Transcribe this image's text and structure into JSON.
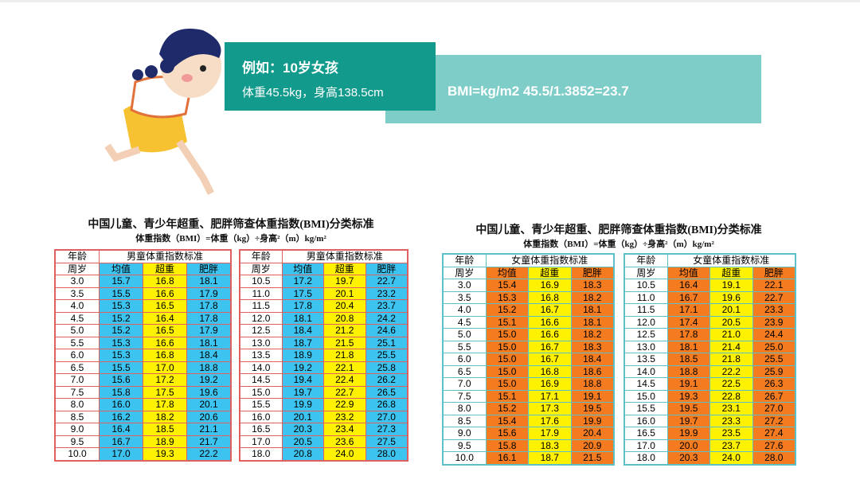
{
  "header": {
    "title": "例如：10岁女孩",
    "subtitle": "体重45.5kg，身高138.5cm",
    "formula": "BMI=kg/m2  45.5/1.3852=23.7"
  },
  "blocks": [
    {
      "title": "中国儿童、青少年超重、肥胖筛查体重指数(BMI)分类标准",
      "formula": "体重指数（BMI）=体重（kg）÷身高²（m）kg/m²",
      "tables": [
        {
          "header": [
            "年龄",
            "男童体重指数标准"
          ],
          "subheader": [
            "周岁",
            "均值",
            "超重",
            "肥胖"
          ],
          "rows": [
            [
              "3.0",
              "15.7",
              "16.8",
              "18.1"
            ],
            [
              "3.5",
              "15.5",
              "16.6",
              "17.9"
            ],
            [
              "4.0",
              "15.3",
              "16.5",
              "17.8"
            ],
            [
              "4.5",
              "15.2",
              "16.4",
              "17.8"
            ],
            [
              "5.0",
              "15.2",
              "16.5",
              "17.9"
            ],
            [
              "5.5",
              "15.3",
              "16.6",
              "18.1"
            ],
            [
              "6.0",
              "15.3",
              "16.8",
              "18.4"
            ],
            [
              "6.5",
              "15.5",
              "17.0",
              "18.8"
            ],
            [
              "7.0",
              "15.6",
              "17.2",
              "19.2"
            ],
            [
              "7.5",
              "15.8",
              "17.5",
              "19.6"
            ],
            [
              "8.0",
              "16.0",
              "17.8",
              "20.1"
            ],
            [
              "8.5",
              "16.2",
              "18.2",
              "20.6"
            ],
            [
              "9.0",
              "16.4",
              "18.5",
              "21.1"
            ],
            [
              "9.5",
              "16.7",
              "18.9",
              "21.7"
            ],
            [
              "10.0",
              "17.0",
              "19.3",
              "22.2"
            ]
          ]
        },
        {
          "header": [
            "年龄",
            "男童体重指数标准"
          ],
          "subheader": [
            "周岁",
            "均值",
            "超重",
            "肥胖"
          ],
          "rows": [
            [
              "10.5",
              "17.2",
              "19.7",
              "22.7"
            ],
            [
              "11.0",
              "17.5",
              "20.1",
              "23.2"
            ],
            [
              "11.5",
              "17.8",
              "20.4",
              "23.7"
            ],
            [
              "12.0",
              "18.1",
              "20.8",
              "24.2"
            ],
            [
              "12.5",
              "18.4",
              "21.2",
              "24.6"
            ],
            [
              "13.0",
              "18.7",
              "21.5",
              "25.1"
            ],
            [
              "13.5",
              "18.9",
              "21.8",
              "25.5"
            ],
            [
              "14.0",
              "19.2",
              "22.1",
              "25.8"
            ],
            [
              "14.5",
              "19.4",
              "22.4",
              "26.2"
            ],
            [
              "15.0",
              "19.7",
              "22.7",
              "26.5"
            ],
            [
              "15.5",
              "19.9",
              "22.9",
              "26.8"
            ],
            [
              "16.0",
              "20.1",
              "23.2",
              "27.0"
            ],
            [
              "16.5",
              "20.3",
              "23.4",
              "27.3"
            ],
            [
              "17.0",
              "20.5",
              "23.6",
              "27.5"
            ],
            [
              "18.0",
              "20.8",
              "24.0",
              "28.0"
            ]
          ]
        }
      ]
    },
    {
      "title": "中国儿童、青少年超重、肥胖筛查体重指数(BMI)分类标准",
      "formula": "体重指数（BMI）=体重（kg）÷身高²（m）kg/m²",
      "tables": [
        {
          "header": [
            "年龄",
            "女童体重指数标准"
          ],
          "subheader": [
            "周岁",
            "均值",
            "超重",
            "肥胖"
          ],
          "rows": [
            [
              "3.0",
              "15.4",
              "16.9",
              "18.3"
            ],
            [
              "3.5",
              "15.3",
              "16.8",
              "18.2"
            ],
            [
              "4.0",
              "15.2",
              "16.7",
              "18.1"
            ],
            [
              "4.5",
              "15.1",
              "16.6",
              "18.1"
            ],
            [
              "5.0",
              "15.0",
              "16.6",
              "18.2"
            ],
            [
              "5.5",
              "15.0",
              "16.7",
              "18.3"
            ],
            [
              "6.0",
              "15.0",
              "16.7",
              "18.4"
            ],
            [
              "6.5",
              "15.0",
              "16.8",
              "18.6"
            ],
            [
              "7.0",
              "15.0",
              "16.9",
              "18.8"
            ],
            [
              "7.5",
              "15.1",
              "17.1",
              "19.1"
            ],
            [
              "8.0",
              "15.2",
              "17.3",
              "19.5"
            ],
            [
              "8.5",
              "15.4",
              "17.6",
              "19.9"
            ],
            [
              "9.0",
              "15.6",
              "17.9",
              "20.4"
            ],
            [
              "9.5",
              "15.8",
              "18.3",
              "20.9"
            ],
            [
              "10.0",
              "16.1",
              "18.7",
              "21.5"
            ]
          ]
        },
        {
          "header": [
            "年龄",
            "女童体重指数标准"
          ],
          "subheader": [
            "周岁",
            "均值",
            "超重",
            "肥胖"
          ],
          "rows": [
            [
              "10.5",
              "16.4",
              "19.1",
              "22.1"
            ],
            [
              "11.0",
              "16.7",
              "19.6",
              "22.7"
            ],
            [
              "11.5",
              "17.1",
              "20.1",
              "23.3"
            ],
            [
              "12.0",
              "17.4",
              "20.5",
              "23.9"
            ],
            [
              "12.5",
              "17.8",
              "21.0",
              "24.4"
            ],
            [
              "13.0",
              "18.1",
              "21.4",
              "25.0"
            ],
            [
              "13.5",
              "18.5",
              "21.8",
              "25.5"
            ],
            [
              "14.0",
              "18.8",
              "22.2",
              "25.9"
            ],
            [
              "14.5",
              "19.1",
              "22.5",
              "26.3"
            ],
            [
              "15.0",
              "19.3",
              "22.8",
              "26.7"
            ],
            [
              "15.5",
              "19.5",
              "23.1",
              "27.0"
            ],
            [
              "16.0",
              "19.7",
              "23.3",
              "27.2"
            ],
            [
              "16.5",
              "19.9",
              "23.5",
              "27.4"
            ],
            [
              "17.0",
              "20.0",
              "23.7",
              "27.6"
            ],
            [
              "18.0",
              "20.3",
              "24.0",
              "28.0"
            ]
          ]
        }
      ]
    }
  ]
}
